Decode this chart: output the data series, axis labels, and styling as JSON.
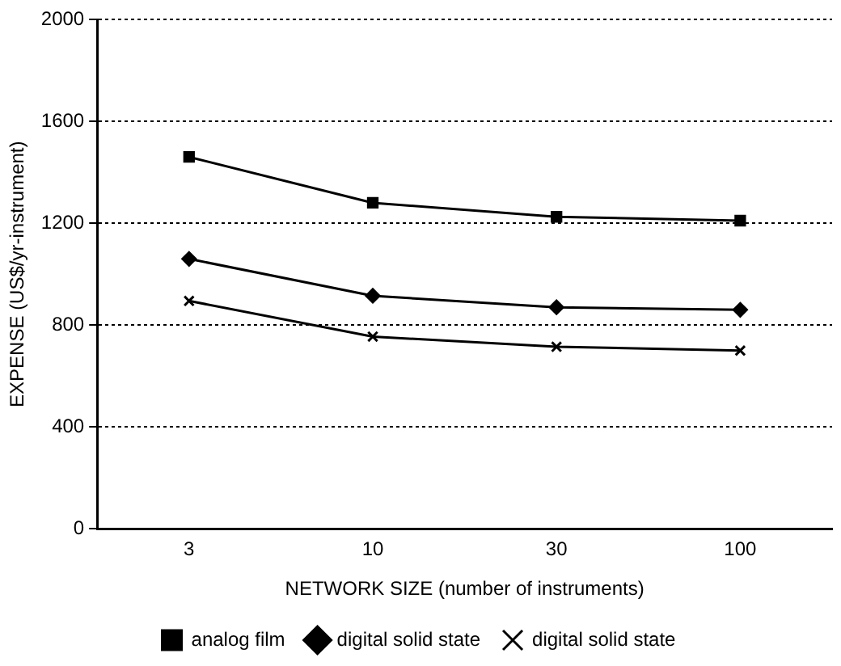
{
  "chart_data": {
    "type": "line",
    "xlabel": "NETWORK SIZE (number of instruments)",
    "ylabel": "EXPENSE (US$/yr-instrument)",
    "categories": [
      "3",
      "10",
      "30",
      "100"
    ],
    "series": [
      {
        "name": "analog film",
        "color": "#000000",
        "marker": "square",
        "values": [
          1460,
          1280,
          1225,
          1210
        ]
      },
      {
        "name": "digital solid state",
        "color": "#000000",
        "marker": "diamond",
        "values": [
          1060,
          915,
          870,
          860
        ]
      },
      {
        "name": "digital solid state",
        "color": "#000000",
        "marker": "cross",
        "values": [
          895,
          755,
          715,
          700
        ]
      }
    ],
    "ylim": [
      0,
      2000
    ],
    "yticks": [
      0,
      400,
      800,
      1200,
      1600,
      2000
    ],
    "grid": "y",
    "legend": "bottom",
    "line_style": "solid"
  }
}
